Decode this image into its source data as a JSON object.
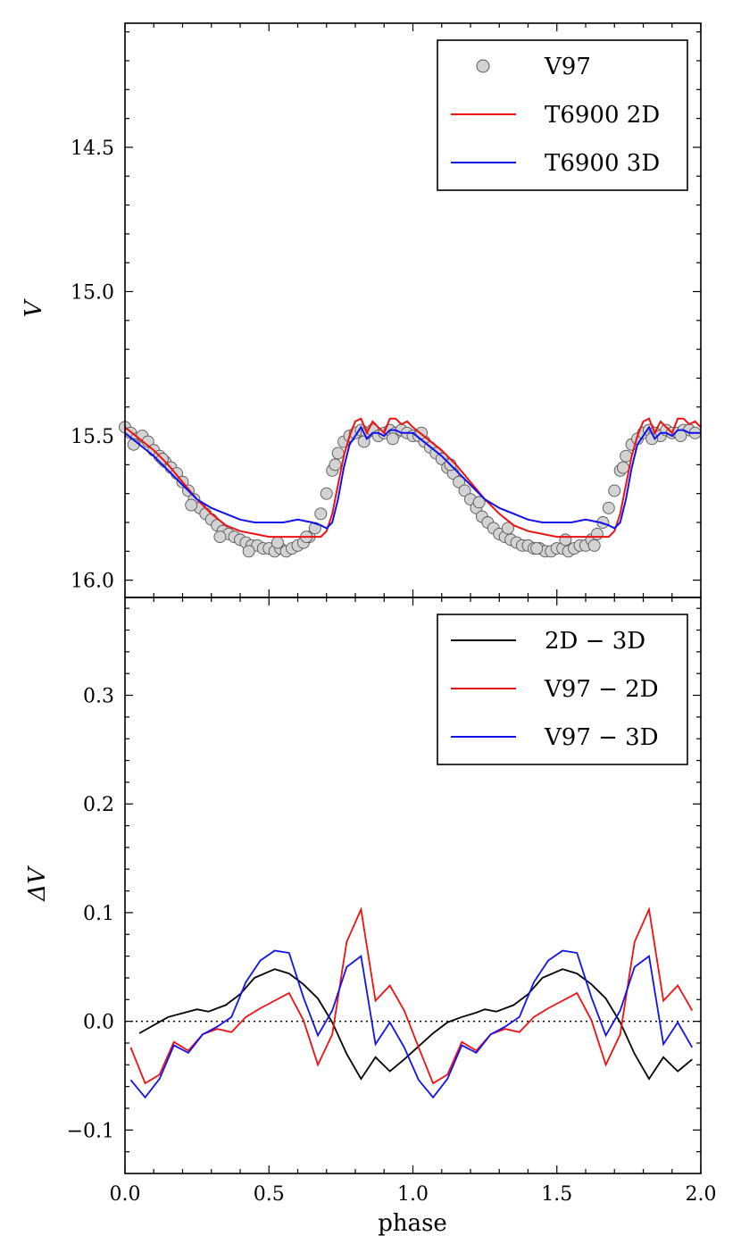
{
  "chart_data": [
    {
      "type": "scatter",
      "xlabel": "",
      "ylabel": "V",
      "xlim": [
        0.0,
        2.0
      ],
      "ylim": [
        16.06,
        14.07
      ],
      "y_inverted": true,
      "yticks": [
        14.5,
        15.0,
        15.5,
        16.0
      ],
      "ytick_labels": [
        "14.5",
        "15.0",
        "15.5",
        "16.0"
      ],
      "legend": {
        "position": "top-right",
        "entries": [
          {
            "label": "V97",
            "marker": "circle",
            "color": "#d3d3d3"
          },
          {
            "label": "T6900 2D",
            "color": "#ee1111"
          },
          {
            "label": "T6900 3D",
            "color": "#1111ee"
          }
        ]
      },
      "series": [
        {
          "name": "V97",
          "kind": "points",
          "color": "#d3d3d3",
          "x": [
            0.0,
            0.02,
            0.04,
            0.06,
            0.08,
            0.1,
            0.12,
            0.14,
            0.16,
            0.18,
            0.2,
            0.22,
            0.24,
            0.26,
            0.28,
            0.3,
            0.32,
            0.34,
            0.36,
            0.38,
            0.4,
            0.42,
            0.44,
            0.46,
            0.48,
            0.5,
            0.52,
            0.54,
            0.56,
            0.58,
            0.6,
            0.62,
            0.64,
            0.66,
            0.68,
            0.7,
            0.72,
            0.74,
            0.76,
            0.78,
            0.8,
            0.82,
            0.84,
            0.86,
            0.88,
            0.9,
            0.92,
            0.94,
            0.96,
            0.98,
            1.0,
            1.02,
            1.04,
            1.06,
            1.08,
            1.1,
            1.12,
            1.14,
            1.16,
            1.18,
            1.2,
            1.22,
            1.24,
            1.26,
            1.28,
            1.3,
            1.32,
            1.34,
            1.36,
            1.38,
            1.4,
            1.42,
            1.44,
            1.46,
            1.48,
            1.5,
            1.52,
            1.54,
            1.56,
            1.58,
            1.6,
            1.62,
            1.64,
            1.66,
            1.68,
            1.7,
            1.72,
            1.74,
            1.76,
            1.78,
            1.8,
            1.82,
            1.84,
            1.86,
            1.88,
            1.9,
            1.92,
            1.94,
            1.96,
            1.98,
            0.03,
            0.13,
            0.23,
            0.33,
            0.43,
            0.53,
            0.63,
            0.73,
            0.83,
            0.93,
            1.03,
            1.13,
            1.23,
            1.33,
            1.43,
            1.53,
            1.63,
            1.73,
            1.83,
            1.93
          ],
          "y": [
            15.47,
            15.49,
            15.51,
            15.5,
            15.52,
            15.55,
            15.57,
            15.59,
            15.61,
            15.63,
            15.66,
            15.69,
            15.72,
            15.75,
            15.77,
            15.79,
            15.81,
            15.83,
            15.84,
            15.85,
            15.86,
            15.87,
            15.88,
            15.88,
            15.89,
            15.89,
            15.9,
            15.89,
            15.9,
            15.89,
            15.88,
            15.87,
            15.85,
            15.82,
            15.77,
            15.7,
            15.62,
            15.56,
            15.52,
            15.5,
            15.49,
            15.48,
            15.49,
            15.48,
            15.5,
            15.49,
            15.48,
            15.49,
            15.48,
            15.49,
            15.5,
            15.5,
            15.52,
            15.54,
            15.56,
            15.58,
            15.61,
            15.63,
            15.66,
            15.69,
            15.72,
            15.75,
            15.78,
            15.8,
            15.82,
            15.84,
            15.85,
            15.86,
            15.87,
            15.88,
            15.88,
            15.89,
            15.89,
            15.9,
            15.9,
            15.89,
            15.89,
            15.9,
            15.89,
            15.88,
            15.88,
            15.86,
            15.84,
            15.8,
            15.75,
            15.69,
            15.62,
            15.57,
            15.53,
            15.51,
            15.49,
            15.48,
            15.49,
            15.5,
            15.48,
            15.49,
            15.49,
            15.48,
            15.48,
            15.49,
            15.53,
            15.58,
            15.74,
            15.85,
            15.9,
            15.87,
            15.85,
            15.6,
            15.52,
            15.51,
            15.49,
            15.6,
            15.73,
            15.82,
            15.89,
            15.86,
            15.88,
            15.61,
            15.51,
            15.5
          ]
        },
        {
          "name": "T6900 2D",
          "kind": "line",
          "color": "#ee1111",
          "x": [
            0.0,
            0.05,
            0.1,
            0.15,
            0.2,
            0.25,
            0.3,
            0.35,
            0.4,
            0.45,
            0.5,
            0.55,
            0.6,
            0.65,
            0.68,
            0.7,
            0.72,
            0.74,
            0.76,
            0.78,
            0.8,
            0.82,
            0.84,
            0.86,
            0.88,
            0.9,
            0.92,
            0.94,
            0.96,
            0.98,
            1.0,
            1.05,
            1.1,
            1.15,
            1.2,
            1.25,
            1.3,
            1.35,
            1.4,
            1.45,
            1.5,
            1.55,
            1.6,
            1.65,
            1.68,
            1.7,
            1.72,
            1.74,
            1.76,
            1.78,
            1.8,
            1.82,
            1.84,
            1.86,
            1.88,
            1.9,
            1.92,
            1.94,
            1.96,
            1.98,
            2.0
          ],
          "y": [
            15.47,
            15.51,
            15.55,
            15.6,
            15.66,
            15.72,
            15.77,
            15.81,
            15.83,
            15.84,
            15.85,
            15.85,
            15.85,
            15.85,
            15.85,
            15.83,
            15.77,
            15.67,
            15.57,
            15.5,
            15.45,
            15.44,
            15.49,
            15.45,
            15.47,
            15.49,
            15.44,
            15.44,
            15.46,
            15.45,
            15.47,
            15.51,
            15.55,
            15.6,
            15.66,
            15.72,
            15.77,
            15.81,
            15.83,
            15.84,
            15.85,
            15.85,
            15.85,
            15.85,
            15.85,
            15.83,
            15.77,
            15.67,
            15.57,
            15.5,
            15.45,
            15.44,
            15.49,
            15.45,
            15.47,
            15.49,
            15.44,
            15.44,
            15.46,
            15.45,
            15.47
          ]
        },
        {
          "name": "T6900 3D",
          "kind": "line",
          "color": "#1111ee",
          "x": [
            0.0,
            0.05,
            0.1,
            0.15,
            0.2,
            0.25,
            0.3,
            0.35,
            0.4,
            0.45,
            0.5,
            0.55,
            0.6,
            0.65,
            0.68,
            0.7,
            0.72,
            0.74,
            0.76,
            0.78,
            0.8,
            0.82,
            0.84,
            0.86,
            0.88,
            0.9,
            0.92,
            0.94,
            0.96,
            0.98,
            1.0,
            1.05,
            1.1,
            1.15,
            1.2,
            1.25,
            1.3,
            1.35,
            1.4,
            1.45,
            1.5,
            1.55,
            1.6,
            1.65,
            1.68,
            1.7,
            1.72,
            1.74,
            1.76,
            1.78,
            1.8,
            1.82,
            1.84,
            1.86,
            1.88,
            1.9,
            1.92,
            1.94,
            1.96,
            1.98,
            2.0
          ],
          "y": [
            15.49,
            15.53,
            15.57,
            15.62,
            15.67,
            15.72,
            15.75,
            15.77,
            15.79,
            15.8,
            15.8,
            15.8,
            15.79,
            15.8,
            15.81,
            15.82,
            15.8,
            15.72,
            15.61,
            15.53,
            15.5,
            15.47,
            15.51,
            15.49,
            15.49,
            15.5,
            15.48,
            15.48,
            15.49,
            15.49,
            15.49,
            15.53,
            15.57,
            15.62,
            15.67,
            15.72,
            15.75,
            15.77,
            15.79,
            15.8,
            15.8,
            15.8,
            15.79,
            15.8,
            15.81,
            15.82,
            15.8,
            15.72,
            15.61,
            15.53,
            15.5,
            15.47,
            15.51,
            15.49,
            15.49,
            15.5,
            15.48,
            15.48,
            15.49,
            15.49,
            15.49
          ]
        }
      ]
    },
    {
      "type": "line",
      "xlabel": "phase",
      "ylabel": "ΔV",
      "xlim": [
        0.0,
        2.0
      ],
      "ylim": [
        -0.14,
        0.39
      ],
      "xticks": [
        0.0,
        0.5,
        1.0,
        1.5,
        2.0
      ],
      "xtick_labels": [
        "0.0",
        "0.5",
        "1.0",
        "1.5",
        "2.0"
      ],
      "yticks": [
        -0.1,
        0.0,
        0.1,
        0.2,
        0.3
      ],
      "ytick_labels": [
        "−0.1",
        "0.0",
        "0.1",
        "0.2",
        "0.3"
      ],
      "zero_line": {
        "y": 0.0,
        "style": "dotted"
      },
      "legend": {
        "position": "top-right",
        "entries": [
          {
            "label": "2D − 3D",
            "color": "#000000"
          },
          {
            "label": "V97 − 2D",
            "color": "#ee1111"
          },
          {
            "label": "V97 − 3D",
            "color": "#1111ee"
          }
        ]
      },
      "series": [
        {
          "name": "2D − 3D",
          "color": "#000000",
          "x": [
            0.05,
            0.15,
            0.25,
            0.29,
            0.35,
            0.4,
            0.45,
            0.52,
            0.57,
            0.62,
            0.67,
            0.72,
            0.77,
            0.82,
            0.87,
            0.92,
            0.97,
            1.02,
            1.07,
            1.12,
            1.17,
            1.22,
            1.25,
            1.29,
            1.35,
            1.4,
            1.45,
            1.52,
            1.57,
            1.62,
            1.67,
            1.72,
            1.77,
            1.82,
            1.87,
            1.92,
            1.97
          ],
          "y": [
            -0.011,
            0.004,
            0.011,
            0.009,
            0.015,
            0.025,
            0.04,
            0.048,
            0.044,
            0.034,
            0.021,
            -0.001,
            -0.03,
            -0.053,
            -0.033,
            -0.046,
            -0.035,
            -0.023,
            -0.011,
            -0.001,
            0.004,
            0.008,
            0.011,
            0.009,
            0.015,
            0.025,
            0.04,
            0.048,
            0.044,
            0.034,
            0.021,
            -0.001,
            -0.03,
            -0.053,
            -0.033,
            -0.046,
            -0.035
          ]
        },
        {
          "name": "V97 − 2D",
          "color": "#ee1111",
          "x": [
            0.02,
            0.07,
            0.12,
            0.17,
            0.22,
            0.27,
            0.32,
            0.37,
            0.42,
            0.47,
            0.52,
            0.57,
            0.62,
            0.67,
            0.72,
            0.77,
            0.82,
            0.87,
            0.92,
            0.97,
            1.02,
            1.07,
            1.12,
            1.17,
            1.22,
            1.27,
            1.32,
            1.37,
            1.42,
            1.47,
            1.52,
            1.57,
            1.62,
            1.67,
            1.72,
            1.77,
            1.82,
            1.87,
            1.92,
            1.97
          ],
          "y": [
            -0.024,
            -0.057,
            -0.049,
            -0.019,
            -0.027,
            -0.012,
            -0.007,
            -0.01,
            0.004,
            0.012,
            0.019,
            0.026,
            0.001,
            -0.04,
            -0.012,
            0.073,
            0.103,
            0.019,
            0.033,
            0.01,
            -0.024,
            -0.057,
            -0.049,
            -0.019,
            -0.027,
            -0.012,
            -0.007,
            -0.01,
            0.004,
            0.012,
            0.019,
            0.026,
            0.001,
            -0.04,
            -0.012,
            0.073,
            0.103,
            0.019,
            0.033,
            0.01
          ]
        },
        {
          "name": "V97 − 3D",
          "color": "#1111ee",
          "x": [
            0.02,
            0.07,
            0.12,
            0.17,
            0.22,
            0.27,
            0.32,
            0.37,
            0.42,
            0.47,
            0.52,
            0.57,
            0.62,
            0.67,
            0.72,
            0.77,
            0.82,
            0.87,
            0.92,
            0.97,
            1.02,
            1.07,
            1.12,
            1.17,
            1.22,
            1.27,
            1.32,
            1.37,
            1.42,
            1.47,
            1.52,
            1.57,
            1.62,
            1.67,
            1.72,
            1.77,
            1.82,
            1.87,
            1.92,
            1.97
          ],
          "y": [
            -0.054,
            -0.07,
            -0.053,
            -0.022,
            -0.029,
            -0.012,
            -0.005,
            0.004,
            0.036,
            0.056,
            0.065,
            0.063,
            0.022,
            -0.013,
            0.01,
            0.05,
            0.06,
            -0.021,
            -0.001,
            -0.024,
            -0.054,
            -0.07,
            -0.053,
            -0.022,
            -0.029,
            -0.012,
            -0.005,
            0.004,
            0.036,
            0.056,
            0.065,
            0.063,
            0.022,
            -0.013,
            0.01,
            0.05,
            0.06,
            -0.021,
            -0.001,
            -0.024
          ]
        }
      ]
    }
  ]
}
